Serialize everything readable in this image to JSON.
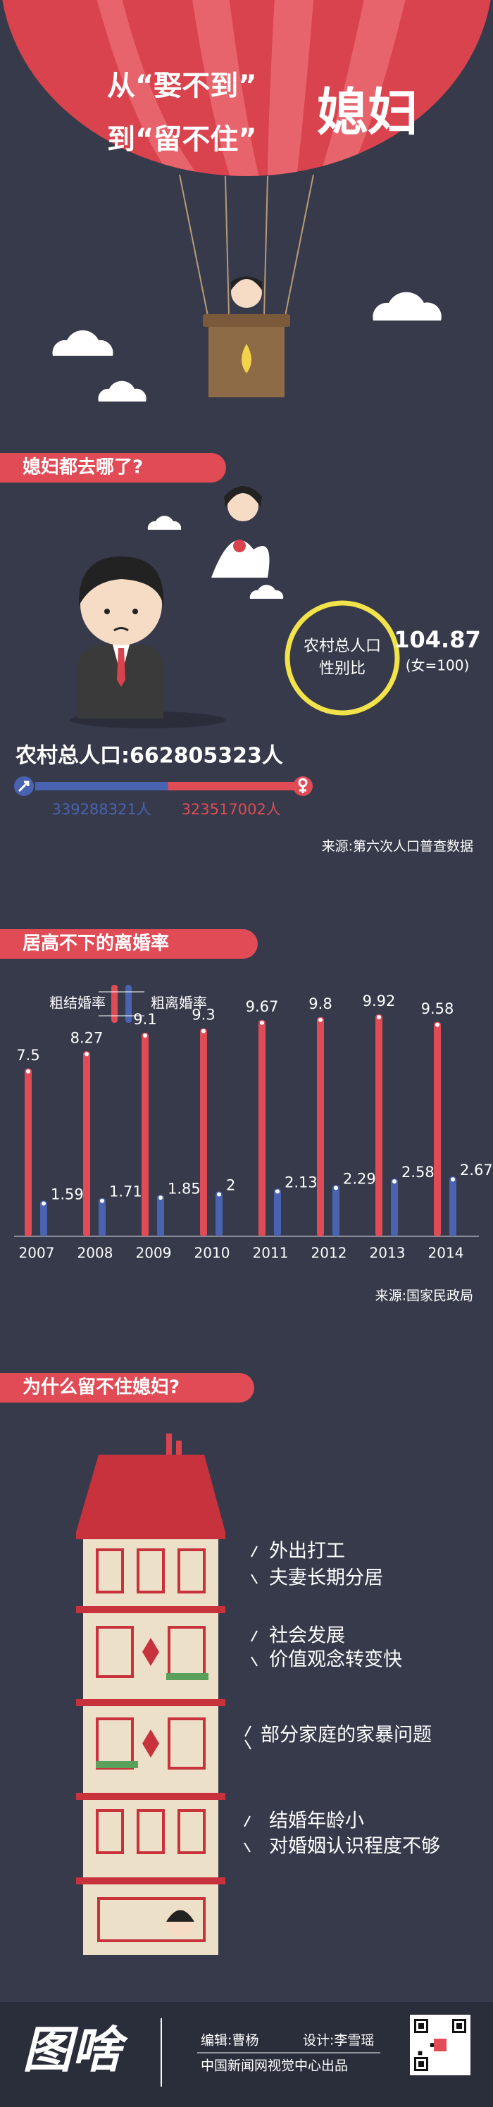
{
  "header": {
    "title_line1": "从“娶不到”",
    "title_line2": "到“留不住”",
    "title_big": "媳妇"
  },
  "section1": {
    "heading": "媳妇都去哪了?",
    "ratio_label": [
      "农村总人口",
      "性别比"
    ],
    "ratio_value": "104.87",
    "ratio_note": "(女=100)",
    "total": "农村总人口:662805323人",
    "population": {
      "values": [
        339288321,
        323517002
      ],
      "value_labels": [
        "339288321人",
        "323517002人"
      ],
      "colors": [
        "#4a63b0",
        "#e04b55"
      ]
    },
    "source": "来源:第六次人口普查数据"
  },
  "chart_data": {
    "type": "bar",
    "title": "居高不下的离婚率",
    "categories": [
      "2007",
      "2008",
      "2009",
      "2010",
      "2011",
      "2012",
      "2013",
      "2014"
    ],
    "series": [
      {
        "name": "粗结婚率",
        "color": "#e04b55",
        "values": [
          7.5,
          8.27,
          9.1,
          9.3,
          9.67,
          9.8,
          9.92,
          9.58
        ]
      },
      {
        "name": "粗离婚率",
        "color": "#4a63b0",
        "values": [
          1.59,
          1.71,
          1.85,
          2,
          2.13,
          2.29,
          2.58,
          2.67
        ]
      }
    ],
    "source": "来源:国家民政局"
  },
  "section3": {
    "heading": "为什么留不住媳妇?",
    "reasons": [
      [
        "外出打工",
        "夫妻长期分居"
      ],
      [
        "社会发展",
        "价值观念转变快"
      ],
      [
        "部分家庭的家暴问题"
      ],
      [
        "结婚年龄小",
        "对婚姻认识程度不够"
      ]
    ]
  },
  "footer": {
    "logo": "图啥",
    "editor": "编辑:曹杨",
    "designer": "设计:李雪瑶",
    "producer": "中国新闻网视觉中心出品"
  }
}
